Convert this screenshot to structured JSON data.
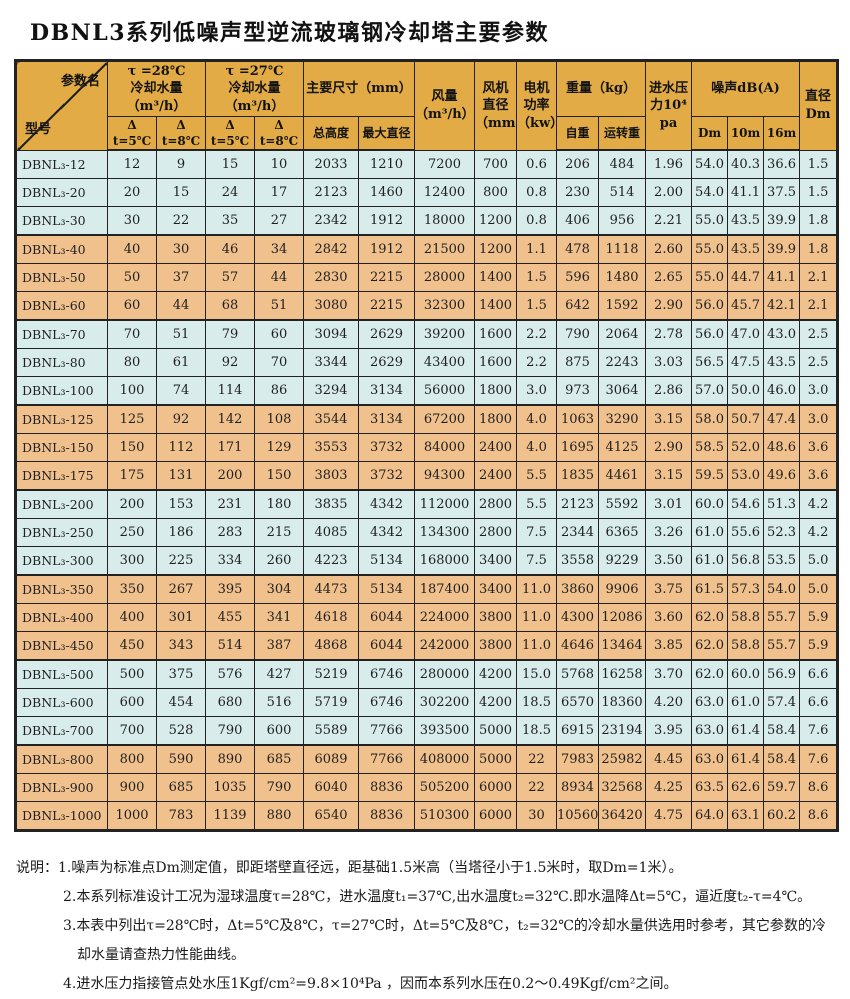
{
  "title": "DBNL3系列低噪声型逆流玻璃钢冷却塔主要参数",
  "palette": {
    "header_bg": "#E2AB45",
    "row_blue": "#D7ECEB",
    "row_orange": "#F1C18D",
    "border": "#222222",
    "text": "#1F1F1F"
  },
  "table": {
    "corner": {
      "top": "参数名",
      "bottom": "型号"
    },
    "headers": {
      "t28": "τ =28℃\n冷却水量（m³/h）",
      "t27": "τ =27℃\n冷却水量（m³/h）",
      "size": "主要尺寸（mm）",
      "airflow": "风量\n（m³/h）",
      "fan_dia": "风机\n直径\n（mm）",
      "motor_power": "电机\n功率\n（kw）",
      "weight": "重量（kg）",
      "inlet_pressure": "进水压\n力10⁴\npa",
      "noise": "噪声dB(A)",
      "diameter": "直径\nDm"
    },
    "subheaders": {
      "dt5": "Δ t=5℃",
      "dt8": "Δ t=8℃",
      "height": "总高度",
      "max_dia": "最大直径",
      "self_weight": "自重",
      "run_weight": "运转重",
      "dm": "Dm",
      "m10": "10m",
      "m16": "16m"
    },
    "model_prefix": "DBNL₃",
    "rows": [
      {
        "model": "-12",
        "cells": [
          "12",
          "9",
          "15",
          "10",
          "2033",
          "1210",
          "7200",
          "700",
          "0.6",
          "206",
          "484",
          "1.96",
          "54.0",
          "40.3",
          "36.6",
          "1.5"
        ]
      },
      {
        "model": "-20",
        "cells": [
          "20",
          "15",
          "24",
          "17",
          "2123",
          "1460",
          "12400",
          "800",
          "0.8",
          "230",
          "514",
          "2.00",
          "54.0",
          "41.1",
          "37.5",
          "1.5"
        ]
      },
      {
        "model": "-30",
        "cells": [
          "30",
          "22",
          "35",
          "27",
          "2342",
          "1912",
          "18000",
          "1200",
          "0.8",
          "406",
          "956",
          "2.21",
          "55.0",
          "43.5",
          "39.9",
          "1.8"
        ]
      },
      {
        "model": "-40",
        "cells": [
          "40",
          "30",
          "46",
          "34",
          "2842",
          "1912",
          "21500",
          "1200",
          "1.1",
          "478",
          "1118",
          "2.60",
          "55.0",
          "43.5",
          "39.9",
          "1.8"
        ]
      },
      {
        "model": "-50",
        "cells": [
          "50",
          "37",
          "57",
          "44",
          "2830",
          "2215",
          "28000",
          "1400",
          "1.5",
          "596",
          "1480",
          "2.65",
          "55.0",
          "44.7",
          "41.1",
          "2.1"
        ]
      },
      {
        "model": "-60",
        "cells": [
          "60",
          "44",
          "68",
          "51",
          "3080",
          "2215",
          "32300",
          "1400",
          "1.5",
          "642",
          "1592",
          "2.90",
          "56.0",
          "45.7",
          "42.1",
          "2.1"
        ]
      },
      {
        "model": "-70",
        "cells": [
          "70",
          "51",
          "79",
          "60",
          "3094",
          "2629",
          "39200",
          "1600",
          "2.2",
          "790",
          "2064",
          "2.78",
          "56.0",
          "47.0",
          "43.0",
          "2.5"
        ]
      },
      {
        "model": "-80",
        "cells": [
          "80",
          "61",
          "92",
          "70",
          "3344",
          "2629",
          "43400",
          "1600",
          "2.2",
          "875",
          "2243",
          "3.03",
          "56.5",
          "47.5",
          "43.5",
          "2.5"
        ]
      },
      {
        "model": "-100",
        "cells": [
          "100",
          "74",
          "114",
          "86",
          "3294",
          "3134",
          "56000",
          "1800",
          "3.0",
          "973",
          "3064",
          "2.86",
          "57.0",
          "50.0",
          "46.0",
          "3.0"
        ]
      },
      {
        "model": "-125",
        "cells": [
          "125",
          "92",
          "142",
          "108",
          "3544",
          "3134",
          "67200",
          "1800",
          "4.0",
          "1063",
          "3290",
          "3.15",
          "58.0",
          "50.7",
          "47.4",
          "3.0"
        ]
      },
      {
        "model": "-150",
        "cells": [
          "150",
          "112",
          "171",
          "129",
          "3553",
          "3732",
          "84000",
          "2400",
          "4.0",
          "1695",
          "4125",
          "2.90",
          "58.5",
          "52.0",
          "48.6",
          "3.6"
        ]
      },
      {
        "model": "-175",
        "cells": [
          "175",
          "131",
          "200",
          "150",
          "3803",
          "3732",
          "94300",
          "2400",
          "5.5",
          "1835",
          "4461",
          "3.15",
          "59.5",
          "53.0",
          "49.6",
          "3.6"
        ]
      },
      {
        "model": "-200",
        "cells": [
          "200",
          "153",
          "231",
          "180",
          "3835",
          "4342",
          "112000",
          "2800",
          "5.5",
          "2123",
          "5592",
          "3.01",
          "60.0",
          "54.6",
          "51.3",
          "4.2"
        ]
      },
      {
        "model": "-250",
        "cells": [
          "250",
          "186",
          "283",
          "215",
          "4085",
          "4342",
          "134300",
          "2800",
          "7.5",
          "2344",
          "6365",
          "3.26",
          "61.0",
          "55.6",
          "52.3",
          "4.2"
        ]
      },
      {
        "model": "-300",
        "cells": [
          "300",
          "225",
          "334",
          "260",
          "4223",
          "5134",
          "168000",
          "3400",
          "7.5",
          "3558",
          "9229",
          "3.50",
          "61.0",
          "56.8",
          "53.5",
          "5.0"
        ]
      },
      {
        "model": "-350",
        "cells": [
          "350",
          "267",
          "395",
          "304",
          "4473",
          "5134",
          "187400",
          "3400",
          "11.0",
          "3860",
          "9906",
          "3.75",
          "61.5",
          "57.3",
          "54.0",
          "5.0"
        ]
      },
      {
        "model": "-400",
        "cells": [
          "400",
          "301",
          "455",
          "341",
          "4618",
          "6044",
          "224000",
          "3800",
          "11.0",
          "4300",
          "12086",
          "3.60",
          "62.0",
          "58.8",
          "55.7",
          "5.9"
        ]
      },
      {
        "model": "-450",
        "cells": [
          "450",
          "343",
          "514",
          "387",
          "4868",
          "6044",
          "242000",
          "3800",
          "11.0",
          "4646",
          "13464",
          "3.85",
          "62.0",
          "58.8",
          "55.7",
          "5.9"
        ]
      },
      {
        "model": "-500",
        "cells": [
          "500",
          "375",
          "576",
          "427",
          "5219",
          "6746",
          "280000",
          "4200",
          "15.0",
          "5768",
          "16258",
          "3.70",
          "62.0",
          "60.0",
          "56.9",
          "6.6"
        ]
      },
      {
        "model": "-600",
        "cells": [
          "600",
          "454",
          "680",
          "516",
          "5719",
          "6746",
          "302200",
          "4200",
          "18.5",
          "6570",
          "18360",
          "4.20",
          "63.0",
          "61.0",
          "57.4",
          "6.6"
        ]
      },
      {
        "model": "-700",
        "cells": [
          "700",
          "528",
          "790",
          "600",
          "5589",
          "7766",
          "393500",
          "5000",
          "18.5",
          "6915",
          "23194",
          "3.95",
          "63.0",
          "61.4",
          "58.4",
          "7.6"
        ]
      },
      {
        "model": "-800",
        "cells": [
          "800",
          "590",
          "890",
          "685",
          "6089",
          "7766",
          "408000",
          "5000",
          "22",
          "7983",
          "25982",
          "4.45",
          "63.0",
          "61.4",
          "58.4",
          "7.6"
        ]
      },
      {
        "model": "-900",
        "cells": [
          "900",
          "685",
          "1035",
          "790",
          "6040",
          "8836",
          "505200",
          "6000",
          "22",
          "8934",
          "32568",
          "4.25",
          "63.5",
          "62.6",
          "59.7",
          "8.6"
        ]
      },
      {
        "model": "-1000",
        "cells": [
          "1000",
          "783",
          "1139",
          "880",
          "6540",
          "8836",
          "510300",
          "6000",
          "30",
          "10560",
          "36420",
          "4.75",
          "64.0",
          "63.1",
          "60.2",
          "8.6"
        ]
      }
    ]
  },
  "notes": {
    "lines": [
      "说明：1.噪声为标准点Dm测定值，即距塔壁直径远，距基础1.5米高（当塔径小于1.5米时，取Dm=1米）。",
      "2.本系列标准设计工况为湿球温度τ=28℃，进水温度t₁=37℃,出水温度t₂=32℃.即水温降Δt=5℃，逼近度t₂-τ=4℃。",
      "3.本表中列出τ=28℃时，Δt=5℃及8℃，τ=27℃时，Δt=5℃及8℃，t₂=32℃的冷却水量供选用时参考，其它参数的冷",
      "却水量请查热力性能曲线。",
      "4.进水压力指接管点处水压1Kgf/cm²=9.8×10⁴Pa ，因而本系列水压在0.2～0.49Kgf/cm²之间。"
    ]
  }
}
